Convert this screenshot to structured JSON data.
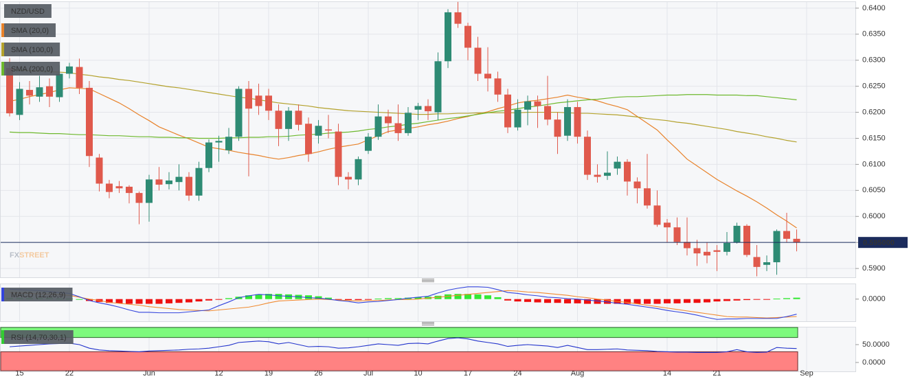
{
  "chart_data": [
    {
      "type": "candlestick",
      "title": "NZD/USD",
      "brand": [
        "FX",
        "STREET"
      ],
      "categories": [
        null,
        "15",
        null,
        null,
        null,
        null,
        "22",
        null,
        null,
        null,
        null,
        null,
        null,
        null,
        "Jun",
        null,
        null,
        null,
        null,
        null,
        null,
        "12",
        null,
        null,
        null,
        null,
        "19",
        null,
        null,
        null,
        null,
        "26",
        null,
        null,
        null,
        null,
        "Jul",
        null,
        null,
        null,
        null,
        "10",
        null,
        null,
        null,
        null,
        "17",
        null,
        null,
        null,
        null,
        "24",
        null,
        null,
        null,
        null,
        null,
        "Aug",
        null,
        null,
        null,
        null,
        null,
        null,
        null,
        null,
        "14",
        null,
        null,
        null,
        null,
        "21",
        null,
        null,
        null,
        null,
        null,
        null,
        null,
        null,
        "Sep"
      ],
      "open": [
        0.6285,
        0.6195,
        0.6243,
        0.623,
        0.625,
        0.6229,
        0.6274,
        0.6287,
        0.6247,
        0.6113,
        0.6063,
        0.6058,
        0.6057,
        0.6045,
        0.6026,
        0.6071,
        0.6062,
        0.6066,
        0.6076,
        0.604,
        0.6093,
        0.6142,
        0.6127,
        0.6153,
        0.6245,
        0.6232,
        0.6232,
        0.6203,
        0.6168,
        0.6203,
        0.6178,
        0.6155,
        0.6167,
        0.6163,
        0.6076,
        0.6071,
        0.6126,
        0.6153,
        0.6192,
        0.6179,
        0.616,
        0.6205,
        0.6212,
        0.62,
        0.6298,
        0.6392,
        0.6366,
        0.6324,
        0.6274,
        0.6265,
        0.6234,
        0.6171,
        0.6205,
        0.6221,
        0.6212,
        0.6186,
        0.6155,
        0.621,
        0.6153,
        0.608,
        0.6078,
        0.6092,
        0.6105,
        0.6067,
        0.6054,
        0.6021,
        0.5988,
        0.5979,
        0.5951,
        0.5939,
        0.5932,
        0.5935,
        0.5932,
        0.595,
        0.5982,
        0.5922,
        0.5907,
        0.5912,
        0.5972,
        0.5957,
        null
      ],
      "high": [
        0.6304,
        0.6258,
        0.626,
        0.627,
        0.6265,
        0.629,
        0.6295,
        0.6303,
        0.626,
        0.612,
        0.607,
        0.6068,
        0.606,
        0.6048,
        0.608,
        0.6095,
        0.6085,
        0.61,
        0.6085,
        0.6105,
        0.6148,
        0.6155,
        0.617,
        0.625,
        0.626,
        0.6255,
        0.6245,
        0.6215,
        0.621,
        0.6215,
        0.619,
        0.6185,
        0.6195,
        0.6178,
        0.6085,
        0.6115,
        0.616,
        0.6215,
        0.6205,
        0.6215,
        0.621,
        0.6218,
        0.6225,
        0.6315,
        0.6398,
        0.6412,
        0.6372,
        0.6345,
        0.6325,
        0.6278,
        0.6245,
        0.6225,
        0.6232,
        0.6232,
        0.627,
        0.62,
        0.6225,
        0.622,
        0.6165,
        0.61,
        0.6125,
        0.6115,
        0.611,
        0.6075,
        0.612,
        0.605,
        0.5995,
        0.5998,
        0.5998,
        0.5955,
        0.595,
        0.5945,
        0.597,
        0.5988,
        0.5985,
        0.5945,
        0.5925,
        0.5975,
        0.6007,
        0.5975,
        null
      ],
      "low": [
        0.6192,
        0.6185,
        0.6215,
        0.622,
        0.621,
        0.622,
        0.6265,
        0.6235,
        0.6095,
        0.6048,
        0.6035,
        0.6045,
        0.6025,
        0.5985,
        0.599,
        0.605,
        0.6052,
        0.605,
        0.603,
        0.603,
        0.6085,
        0.6105,
        0.612,
        0.6145,
        0.6077,
        0.6195,
        0.6185,
        0.6135,
        0.6145,
        0.6165,
        0.6105,
        0.614,
        0.615,
        0.606,
        0.6052,
        0.606,
        0.612,
        0.6147,
        0.616,
        0.6145,
        0.6155,
        0.6185,
        0.6185,
        0.6185,
        0.6285,
        0.6362,
        0.63,
        0.626,
        0.624,
        0.622,
        0.616,
        0.6165,
        0.6175,
        0.617,
        0.6175,
        0.612,
        0.6145,
        0.614,
        0.607,
        0.6065,
        0.607,
        0.608,
        0.604,
        0.6025,
        0.6015,
        0.598,
        0.595,
        0.5945,
        0.5925,
        0.5905,
        0.591,
        0.5895,
        0.5925,
        0.5948,
        0.5922,
        0.5885,
        0.5895,
        0.5888,
        0.595,
        0.5933,
        null
      ],
      "close": [
        0.6198,
        0.6245,
        0.6232,
        0.6248,
        0.623,
        0.6274,
        0.6288,
        0.6247,
        0.6116,
        0.6063,
        0.6047,
        0.6054,
        0.6045,
        0.6026,
        0.6071,
        0.6061,
        0.6069,
        0.6076,
        0.604,
        0.6093,
        0.6142,
        0.6145,
        0.6153,
        0.6245,
        0.6207,
        0.6212,
        0.6203,
        0.6168,
        0.6203,
        0.6176,
        0.612,
        0.6174,
        0.6165,
        0.6076,
        0.6071,
        0.611,
        0.6153,
        0.6192,
        0.6179,
        0.616,
        0.6199,
        0.6212,
        0.6202,
        0.6298,
        0.6392,
        0.637,
        0.6324,
        0.6274,
        0.6265,
        0.6234,
        0.6171,
        0.6205,
        0.6221,
        0.6212,
        0.6186,
        0.6153,
        0.621,
        0.6153,
        0.608,
        0.6076,
        0.6084,
        0.6105,
        0.6067,
        0.6054,
        0.6021,
        0.5984,
        0.5979,
        0.5951,
        0.5939,
        0.5929,
        0.5925,
        0.5932,
        0.5949,
        0.5982,
        0.5926,
        0.5903,
        0.5912,
        0.5972,
        0.5957,
        0.595,
        null
      ],
      "up_color": "#2e8b74",
      "down_color": "#e0594c",
      "series": [
        {
          "name": "SMA (20,0)",
          "color": "#e8822a",
          "values": [
            0.6221,
            0.6225,
            0.623,
            0.6234,
            0.6238,
            0.6243,
            0.6247,
            0.6246,
            0.6245,
            0.6236,
            0.6227,
            0.6218,
            0.6207,
            0.6195,
            0.6184,
            0.6172,
            0.6164,
            0.6156,
            0.6149,
            0.6141,
            0.6133,
            0.613,
            0.6127,
            0.6123,
            0.612,
            0.6117,
            0.6113,
            0.611,
            0.6113,
            0.6117,
            0.612,
            0.6124,
            0.6129,
            0.6133,
            0.6136,
            0.6139,
            0.6147,
            0.6155,
            0.6163,
            0.6166,
            0.6169,
            0.6172,
            0.6176,
            0.6179,
            0.6183,
            0.6188,
            0.6192,
            0.6197,
            0.6201,
            0.6207,
            0.6212,
            0.6218,
            0.6221,
            0.6223,
            0.6226,
            0.6229,
            0.6233,
            0.6229,
            0.6226,
            0.6222,
            0.6216,
            0.6211,
            0.6205,
            0.6192,
            0.6179,
            0.6166,
            0.6147,
            0.6129,
            0.611,
            0.6097,
            0.6084,
            0.6071,
            0.606,
            0.6049,
            0.6039,
            0.6028,
            0.6016,
            0.6003,
            0.5991,
            0.5978,
            null
          ]
        },
        {
          "name": "SMA (100,0)",
          "color": "#b3a12b",
          "values": [
            0.6282,
            0.6281,
            0.628,
            0.6279,
            0.6278,
            0.6277,
            0.6276,
            0.6273,
            0.6271,
            0.6268,
            0.6266,
            0.6263,
            0.6261,
            0.6258,
            0.6255,
            0.6252,
            0.6249,
            0.6247,
            0.6244,
            0.6241,
            0.6238,
            0.6235,
            0.6232,
            0.6229,
            0.6227,
            0.6224,
            0.6221,
            0.6218,
            0.6216,
            0.6214,
            0.6212,
            0.6209,
            0.6207,
            0.6205,
            0.6203,
            0.6202,
            0.6201,
            0.62,
            0.6199,
            0.6198,
            0.6197,
            0.6196,
            0.6196,
            0.6197,
            0.6197,
            0.6198,
            0.6198,
            0.6199,
            0.6199,
            0.6199,
            0.6199,
            0.6199,
            0.62,
            0.62,
            0.62,
            0.62,
            0.6199,
            0.6198,
            0.6198,
            0.6197,
            0.6196,
            0.6195,
            0.6193,
            0.6191,
            0.6188,
            0.6186,
            0.6184,
            0.6181,
            0.6179,
            0.6176,
            0.6173,
            0.617,
            0.6167,
            0.6163,
            0.616,
            0.6157,
            0.6153,
            0.615,
            0.6146,
            0.6143,
            null
          ]
        },
        {
          "name": "SMA (200,0)",
          "color": "#6db82c",
          "values": [
            0.6162,
            0.6161,
            0.6161,
            0.616,
            0.6159,
            0.6159,
            0.6158,
            0.6157,
            0.6157,
            0.6156,
            0.6155,
            0.6155,
            0.6154,
            0.6153,
            0.6153,
            0.6152,
            0.6152,
            0.6151,
            0.6151,
            0.615,
            0.615,
            0.615,
            0.6151,
            0.6151,
            0.6152,
            0.6152,
            0.6153,
            0.6153,
            0.6154,
            0.6156,
            0.6157,
            0.6158,
            0.616,
            0.6161,
            0.6162,
            0.6164,
            0.6167,
            0.6169,
            0.6172,
            0.6174,
            0.6177,
            0.6179,
            0.6182,
            0.6185,
            0.6188,
            0.619,
            0.6193,
            0.6196,
            0.6199,
            0.6202,
            0.6204,
            0.6207,
            0.621,
            0.6212,
            0.6215,
            0.6218,
            0.622,
            0.6222,
            0.6224,
            0.6225,
            0.6227,
            0.6229,
            0.623,
            0.623,
            0.6231,
            0.6232,
            0.6233,
            0.6233,
            0.6234,
            0.6234,
            0.6234,
            0.6233,
            0.6233,
            0.6233,
            0.6232,
            0.6232,
            0.623,
            0.6228,
            0.6226,
            0.6224,
            null
          ]
        }
      ],
      "last_price": {
        "value": 0.595,
        "label": "0.595000"
      },
      "last_price_color": "#1b2b5c",
      "ylim": [
        0.5883,
        0.6413
      ],
      "yticks": [
        {
          "value": 0.59,
          "label": "0.5900"
        },
        {
          "value": 0.595,
          "label": "0.5950"
        },
        {
          "value": 0.6,
          "label": "0.6000"
        },
        {
          "value": 0.605,
          "label": "0.6050"
        },
        {
          "value": 0.61,
          "label": "0.6100"
        },
        {
          "value": 0.615,
          "label": "0.6150"
        },
        {
          "value": 0.62,
          "label": "0.6200"
        },
        {
          "value": 0.625,
          "label": "0.6250"
        },
        {
          "value": 0.63,
          "label": "0.6300"
        },
        {
          "value": 0.635,
          "label": "0.6350"
        },
        {
          "value": 0.64,
          "label": "0.6400"
        }
      ],
      "grid": true
    },
    {
      "type": "macd",
      "title": "MACD (12,26,9)",
      "macd": {
        "color": "#3344dd",
        "values": [
          0.0021,
          0.002,
          0.0019,
          0.0018,
          0.0016,
          0.0014,
          0.0012,
          0.0005,
          -0.0003,
          -0.0008,
          -0.0012,
          -0.0017,
          -0.0023,
          -0.0028,
          -0.0028,
          -0.0029,
          -0.0029,
          -0.0029,
          -0.0027,
          -0.0025,
          -0.0023,
          -0.0014,
          -0.0006,
          0.0003,
          0.0007,
          0.001,
          0.0009,
          0.0007,
          0.0006,
          0.0005,
          0.0003,
          0.0002,
          0.0,
          -0.0003,
          -0.0005,
          -0.0008,
          -0.0006,
          -0.0005,
          -0.0003,
          -0.0001,
          0.0002,
          0.0004,
          0.0006,
          0.0013,
          0.0019,
          0.0023,
          0.0026,
          0.0026,
          0.0025,
          0.002,
          0.0014,
          0.0012,
          0.0009,
          0.0007,
          0.0004,
          0.0003,
          0.0001,
          0.0,
          -0.0002,
          -0.0004,
          -0.0006,
          -0.0009,
          -0.0011,
          -0.0014,
          -0.0017,
          -0.002,
          -0.0024,
          -0.0027,
          -0.003,
          -0.0034,
          -0.0039,
          -0.0043,
          -0.0042,
          -0.0042,
          -0.0041,
          -0.0041,
          -0.0041,
          -0.0041,
          -0.0037,
          -0.0032,
          null
        ]
      },
      "signal": {
        "color": "#f08a30",
        "values": [
          0.0014,
          0.0013,
          0.0012,
          0.0011,
          0.001,
          0.0009,
          0.0008,
          0.0004,
          0.0,
          -0.0003,
          -0.0007,
          -0.0009,
          -0.0011,
          -0.0013,
          -0.0016,
          -0.0018,
          -0.002,
          -0.0022,
          -0.0023,
          -0.0024,
          -0.0025,
          -0.0023,
          -0.0021,
          -0.0019,
          -0.0017,
          -0.0013,
          -0.0008,
          -0.0004,
          -0.0003,
          -0.0002,
          -0.0001,
          0.0,
          -0.0001,
          -0.0002,
          -0.0003,
          -0.0004,
          -0.0003,
          -0.0003,
          -0.0002,
          -0.0001,
          -0.0001,
          0.0,
          0.0002,
          0.0004,
          0.0006,
          0.0008,
          0.001,
          0.0012,
          0.0014,
          0.0016,
          0.0018,
          0.0017,
          0.0015,
          0.0014,
          0.0012,
          0.001,
          0.0008,
          0.0005,
          0.0003,
          0.0,
          -0.0002,
          -0.0005,
          -0.0007,
          -0.001,
          -0.0013,
          -0.0016,
          -0.0019,
          -0.0022,
          -0.0025,
          -0.0028,
          -0.0031,
          -0.0034,
          -0.0037,
          -0.0038,
          -0.0038,
          -0.0039,
          -0.004,
          -0.0039,
          -0.0038,
          -0.0037,
          null
        ]
      },
      "histogram": [
        0.0002,
        0.0002,
        0.0002,
        0.0002,
        0.0002,
        0.0001,
        0.0001,
        0.0,
        -0.0004,
        -0.0006,
        -0.0008,
        -0.0009,
        -0.001,
        -0.001,
        -0.001,
        -0.001,
        -0.0009,
        -0.0008,
        -0.0007,
        -0.0005,
        -0.0003,
        -0.0001,
        0.0002,
        0.0005,
        0.0008,
        0.001,
        0.0011,
        0.0011,
        0.001,
        0.0009,
        0.0008,
        0.0006,
        0.0003,
        -0.0001,
        -0.0002,
        -0.0002,
        -0.0001,
        0.0001,
        0.0002,
        0.0002,
        0.0003,
        0.0004,
        0.0005,
        0.0007,
        0.001,
        0.0011,
        0.0011,
        0.001,
        0.0008,
        0.0004,
        -0.0003,
        -0.0005,
        -0.0006,
        -0.0007,
        -0.0008,
        -0.0008,
        -0.0009,
        -0.0009,
        -0.001,
        -0.001,
        -0.001,
        -0.001,
        -0.001,
        -0.001,
        -0.001,
        -0.001,
        -0.0009,
        -0.0009,
        -0.0008,
        -0.0008,
        -0.0007,
        -0.0005,
        -0.0004,
        -0.0003,
        -0.0002,
        -0.0001,
        -0.0001,
        0.0001,
        0.0002,
        0.0003,
        null
      ],
      "up_color": "#33e833",
      "down_color": "#ee1111",
      "ylim": [
        -0.0047,
        0.0033
      ],
      "yticks": [
        {
          "value": 0,
          "label": "0.0000"
        }
      ]
    },
    {
      "type": "rsi",
      "title": "RSI (14,70,30,1)",
      "color": "#2233cc",
      "values": [
        44,
        46,
        48,
        50,
        52,
        53,
        54,
        50,
        40,
        35,
        33,
        32,
        31,
        30,
        32,
        33,
        34,
        35,
        37,
        38,
        40,
        44,
        48,
        56,
        58,
        60,
        58,
        52,
        56,
        50,
        44,
        45,
        44,
        40,
        41,
        44,
        48,
        52,
        50,
        48,
        53,
        54,
        52,
        60,
        67,
        69,
        66,
        60,
        56,
        52,
        45,
        48,
        50,
        48,
        46,
        42,
        48,
        42,
        36,
        36,
        37,
        38,
        35,
        34,
        33,
        31,
        30,
        29,
        29,
        28,
        28,
        28,
        30,
        36,
        30,
        28,
        29,
        42,
        40,
        39,
        null
      ],
      "overbought": 70,
      "oversold": 30,
      "overbought_color": "#7dfa7d",
      "oversold_color": "#ff8282",
      "ylim": [
        -25,
        100
      ],
      "yticks": [
        {
          "value": 50,
          "label": "50.0000"
        },
        {
          "value": 0,
          "label": "0.0000"
        }
      ]
    }
  ]
}
